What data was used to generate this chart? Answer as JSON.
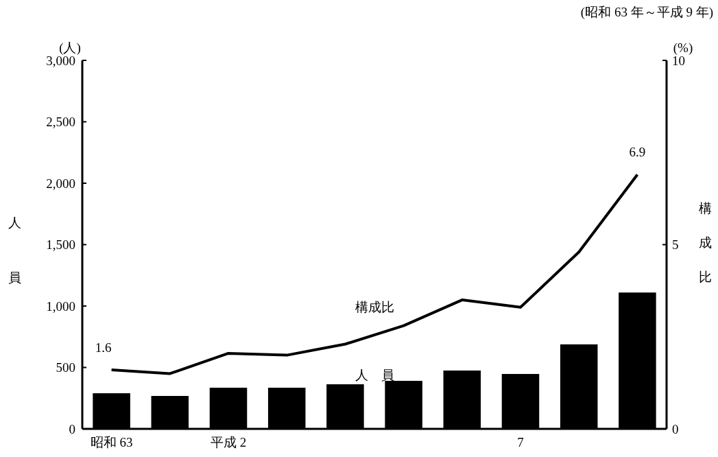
{
  "chart_data": {
    "type": "bar",
    "subtitle": "(昭和 63 年～平成 9 年)",
    "ylabel": "人員",
    "y2label": "構成比",
    "annotations": [
      "(人)",
      "(%)"
    ],
    "categories": [
      "昭和 63",
      null,
      "平成 2",
      null,
      null,
      null,
      null,
      "7",
      null,
      null
    ],
    "series": [
      {
        "name": "人　員",
        "color": "#000000",
        "values": [
          290,
          268,
          335,
          335,
          363,
          391,
          475,
          447,
          688,
          1110
        ]
      },
      {
        "name": "構成比",
        "type": "line",
        "axis": "y2",
        "color": "#000000",
        "values": [
          1.6,
          1.5,
          2.05,
          2.0,
          2.3,
          2.8,
          3.5,
          3.3,
          4.8,
          6.9
        ],
        "value_labels": [
          "1.6",
          null,
          null,
          null,
          null,
          null,
          null,
          null,
          null,
          "6.9"
        ]
      }
    ],
    "ylim": [
      0,
      3000
    ],
    "yticks": [
      0,
      500,
      {
        "value": 1000,
        "label": "1,000"
      },
      {
        "value": 1500,
        "label": "1,500"
      },
      {
        "value": 2000,
        "label": "2,000"
      },
      {
        "value": 2500,
        "label": "2,500"
      },
      {
        "value": 3000,
        "label": "3,000"
      }
    ],
    "y2lim": [
      0,
      10
    ],
    "y2ticks": [
      0,
      5,
      10
    ],
    "grid": false,
    "legend": false,
    "marker": "none",
    "line_style": "solid"
  }
}
